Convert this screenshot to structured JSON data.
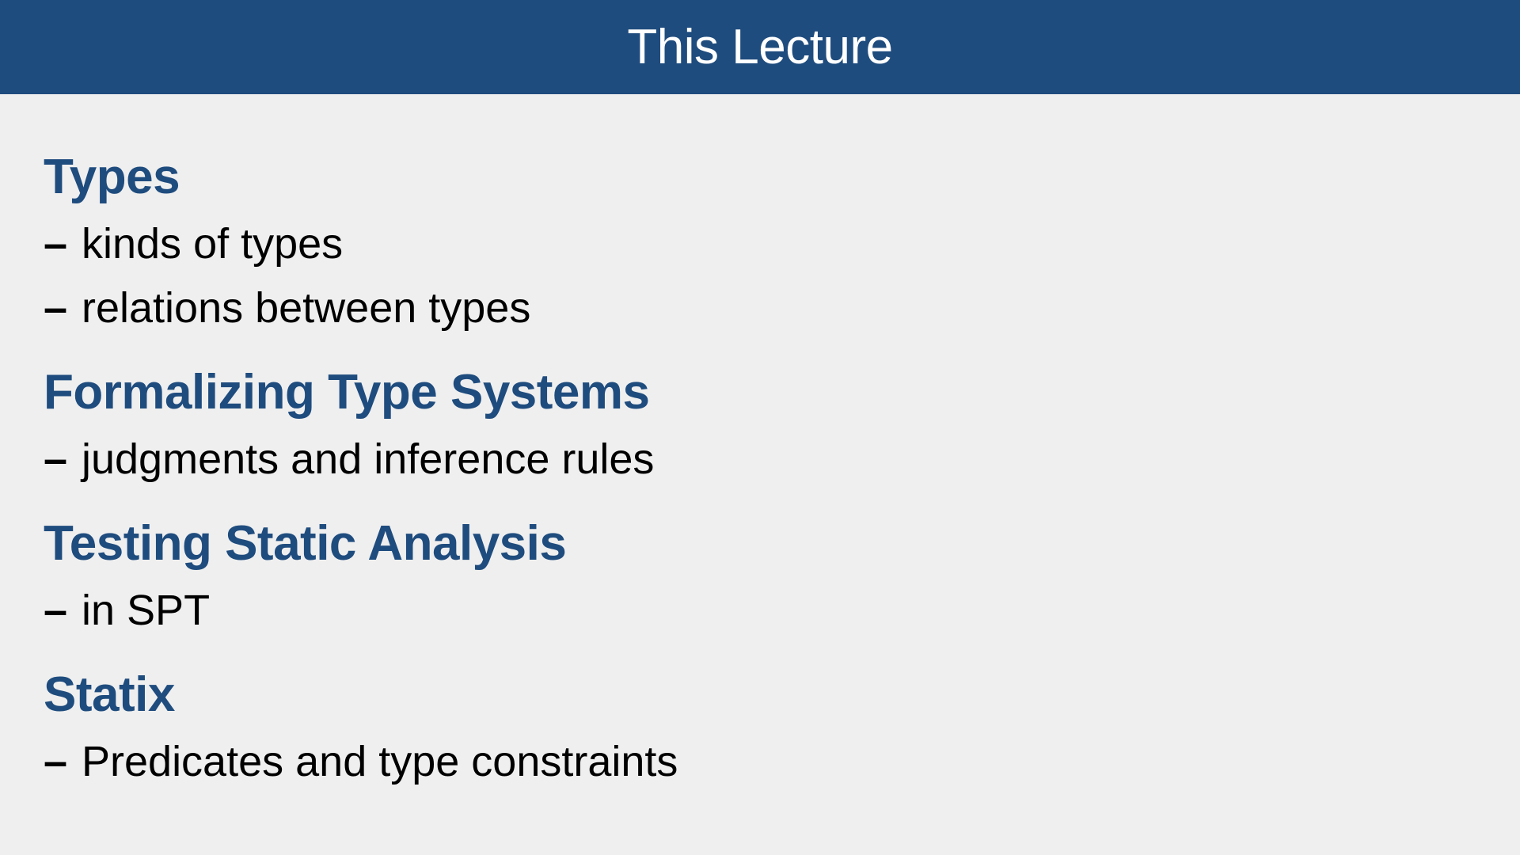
{
  "slide": {
    "title": "This Lecture",
    "colors": {
      "header_bg": "#1f4c7e",
      "accent": "#1f4c7e",
      "background": "#efefef",
      "text": "#000000"
    },
    "bullet_marker": "–",
    "sections": [
      {
        "heading": "Types",
        "items": [
          "kinds of types",
          "relations between types"
        ]
      },
      {
        "heading": "Formalizing Type Systems",
        "items": [
          "judgments and inference rules"
        ]
      },
      {
        "heading": "Testing Static Analysis",
        "items": [
          "in SPT"
        ]
      },
      {
        "heading": "Statix",
        "items": [
          "Predicates and type constraints"
        ]
      }
    ]
  }
}
